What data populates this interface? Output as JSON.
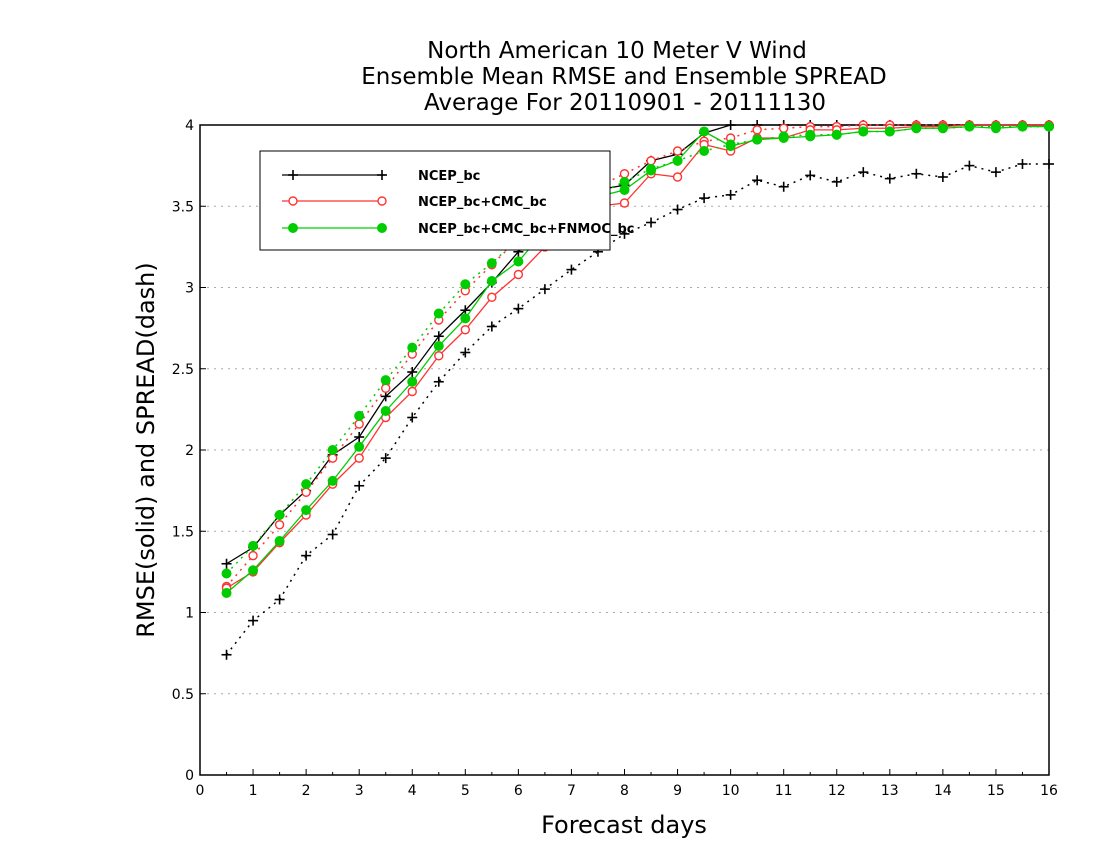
{
  "chart_data": {
    "type": "line",
    "title": [
      "North American 10 Meter V Wind",
      "Ensemble Mean RMSE and Ensemble SPREAD",
      "Average For 20110901 - 20111130"
    ],
    "xlabel": "Forecast days",
    "ylabel": "RMSE(solid) and SPREAD(dash)",
    "xlim": [
      0,
      16
    ],
    "ylim": [
      0,
      4
    ],
    "xticks": [
      "0",
      "1",
      "2",
      "3",
      "4",
      "5",
      "6",
      "7",
      "8",
      "9",
      "10",
      "11",
      "12",
      "13",
      "14",
      "15",
      "16"
    ],
    "yticks": [
      "0",
      "0.5",
      "1",
      "1.5",
      "2",
      "2.5",
      "3",
      "3.5",
      "4"
    ],
    "grid": "horizontal dotted",
    "legend_position": "top-left",
    "x": [
      0.5,
      1,
      1.5,
      2,
      2.5,
      3,
      3.5,
      4,
      4.5,
      5,
      5.5,
      6,
      6.5,
      7,
      7.5,
      8,
      8.5,
      9,
      9.5,
      10,
      10.5,
      11,
      11.5,
      12,
      12.5,
      13,
      13.5,
      14,
      14.5,
      15,
      15.5,
      16
    ],
    "series": [
      {
        "name": "NCEP_bc",
        "color": "#000000",
        "marker": "plus",
        "rmse": [
          1.3,
          1.4,
          1.6,
          1.75,
          1.97,
          2.08,
          2.33,
          2.48,
          2.7,
          2.86,
          3.03,
          3.22,
          3.38,
          3.5,
          3.6,
          3.63,
          3.78,
          3.82,
          3.95,
          4.0,
          4.0,
          4.0,
          4.0,
          4.0,
          4.0,
          4.0,
          4.0,
          4.0,
          4.0,
          4.0,
          4.0,
          4.0
        ],
        "spread": [
          0.74,
          0.95,
          1.08,
          1.35,
          1.48,
          1.78,
          1.95,
          2.2,
          2.42,
          2.6,
          2.76,
          2.87,
          2.99,
          3.11,
          3.22,
          3.33,
          3.4,
          3.48,
          3.55,
          3.57,
          3.66,
          3.62,
          3.69,
          3.65,
          3.71,
          3.67,
          3.7,
          3.68,
          3.75,
          3.71,
          3.76,
          3.76
        ]
      },
      {
        "name": "NCEP_bc+CMC_bc",
        "color": "#ff3333",
        "marker": "open-circle",
        "rmse": [
          1.15,
          1.25,
          1.43,
          1.6,
          1.79,
          1.95,
          2.2,
          2.36,
          2.58,
          2.74,
          2.94,
          3.08,
          3.25,
          3.4,
          3.5,
          3.52,
          3.7,
          3.68,
          3.88,
          3.84,
          3.92,
          3.92,
          3.97,
          3.97,
          3.98,
          3.98,
          3.99,
          3.99,
          4.0,
          4.0,
          4.0,
          4.0
        ],
        "spread": [
          1.16,
          1.35,
          1.54,
          1.74,
          1.95,
          2.16,
          2.38,
          2.59,
          2.8,
          2.98,
          3.14,
          3.3,
          3.45,
          3.55,
          3.62,
          3.7,
          3.78,
          3.84,
          3.9,
          3.92,
          3.97,
          3.98,
          3.99,
          3.99,
          4.0,
          4.0,
          4.0,
          4.0,
          4.0,
          4.0,
          4.0,
          4.0
        ]
      },
      {
        "name": "NCEP_bc+CMC_bc+FNMOC_bc",
        "color": "#00cc00",
        "marker": "filled-circle",
        "rmse": [
          1.12,
          1.26,
          1.44,
          1.63,
          1.81,
          2.02,
          2.24,
          2.42,
          2.64,
          2.81,
          3.04,
          3.16,
          3.35,
          3.46,
          3.56,
          3.6,
          3.72,
          3.78,
          3.96,
          3.87,
          3.91,
          3.92,
          3.93,
          3.94,
          3.96,
          3.96,
          3.98,
          3.98,
          3.99,
          3.98,
          3.99,
          3.99
        ],
        "spread": [
          1.24,
          1.41,
          1.6,
          1.79,
          2.0,
          2.21,
          2.43,
          2.63,
          2.84,
          3.02,
          3.15,
          3.3,
          3.43,
          3.52,
          3.58,
          3.65,
          3.73,
          3.78,
          3.84,
          3.88,
          3.91,
          3.93,
          3.94,
          3.94,
          3.96,
          3.96,
          3.98,
          3.98,
          3.99,
          3.99,
          3.99,
          3.99
        ]
      }
    ]
  }
}
